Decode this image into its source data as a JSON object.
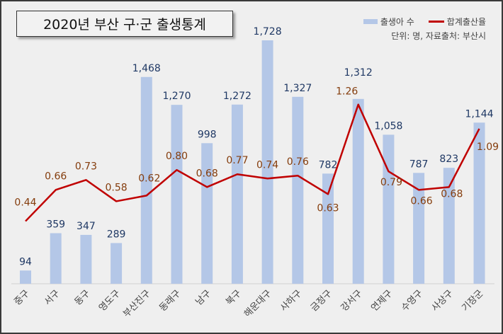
{
  "chart_data": {
    "type": "bar+line",
    "title": "2020년 부산 구·군 출생통계",
    "unit_note": "단위: 명, 자료출처: 부산시",
    "categories": [
      "중구",
      "서구",
      "동구",
      "영도구",
      "부산진구",
      "동래구",
      "남구",
      "북구",
      "해운대구",
      "사하구",
      "금정구",
      "강서구",
      "연제구",
      "수영구",
      "사상구",
      "기장군"
    ],
    "series": [
      {
        "name": "출생아 수",
        "type": "bar",
        "color": "#b4c7e7",
        "label_color": "#1f3864",
        "values": [
          94,
          359,
          347,
          289,
          1468,
          1270,
          998,
          1272,
          1728,
          1327,
          782,
          1312,
          1058,
          787,
          823,
          1144
        ],
        "labels": [
          "94",
          "359",
          "347",
          "289",
          "1,468",
          "1,270",
          "998",
          "1,272",
          "1,728",
          "1,327",
          "782",
          "1,312",
          "1,058",
          "787",
          "823",
          "1,144"
        ]
      },
      {
        "name": "합계출산율",
        "type": "line",
        "color": "#c00000",
        "label_color": "#843c0c",
        "values": [
          0.44,
          0.66,
          0.73,
          0.58,
          0.62,
          0.8,
          0.68,
          0.77,
          0.74,
          0.76,
          0.63,
          1.26,
          0.79,
          0.66,
          0.68,
          1.09
        ],
        "labels": [
          "0.44",
          "0.66",
          "0.73",
          "0.58",
          "0.62",
          "0.80",
          "0.68",
          "0.77",
          "0.74",
          "0.76",
          "0.63",
          "1.26",
          "0.79",
          "0.66",
          "0.68",
          "1.09"
        ]
      }
    ],
    "grid": false,
    "legend_position": "top-right"
  }
}
